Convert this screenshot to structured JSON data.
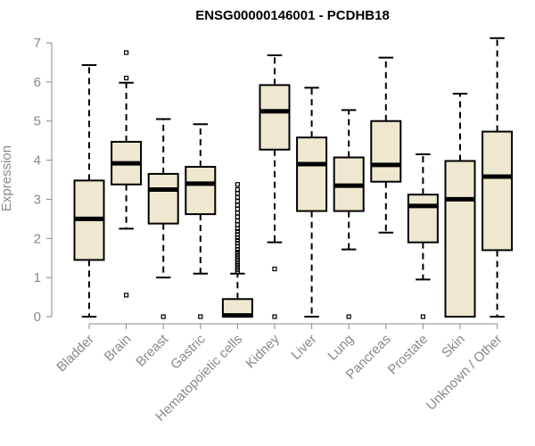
{
  "chart_data": {
    "type": "boxplot",
    "title": "ENSG00000146001 - PCDHB18",
    "ylabel": "Expression",
    "xlabel": "",
    "ylim": [
      0,
      7
    ],
    "yticks": [
      0,
      1,
      2,
      3,
      4,
      5,
      6,
      7
    ],
    "box_fill": "#efe8d0",
    "categories": [
      "Bladder",
      "Brain",
      "Breast",
      "Gastric",
      "Hematopoietic cells",
      "Kidney",
      "Liver",
      "Lung",
      "Pancreas",
      "Prostate",
      "Skin",
      "Unknown / Other"
    ],
    "series": [
      {
        "category": "Bladder",
        "whisker_low": 0.0,
        "q1": 1.45,
        "median": 2.5,
        "q3": 3.48,
        "whisker_high": 6.43,
        "outliers": []
      },
      {
        "category": "Brain",
        "whisker_low": 2.25,
        "q1": 3.38,
        "median": 3.92,
        "q3": 4.47,
        "whisker_high": 5.98,
        "outliers": [
          0.55,
          6.1,
          6.75
        ]
      },
      {
        "category": "Breast",
        "whisker_low": 1.0,
        "q1": 2.38,
        "median": 3.25,
        "q3": 3.65,
        "whisker_high": 5.05,
        "outliers": [
          0.0
        ]
      },
      {
        "category": "Gastric",
        "whisker_low": 1.1,
        "q1": 2.62,
        "median": 3.4,
        "q3": 3.83,
        "whisker_high": 4.92,
        "outliers": [
          0.0
        ]
      },
      {
        "category": "Hematopoietic cells",
        "whisker_low": 0.0,
        "q1": 0.0,
        "median": 0.03,
        "q3": 0.45,
        "whisker_high": 1.1,
        "outliers": [
          1.15,
          1.2,
          1.25,
          1.3,
          1.35,
          1.4,
          1.45,
          1.5,
          1.55,
          1.6,
          1.65,
          1.72,
          1.8,
          1.88,
          1.95,
          2.02,
          2.1,
          2.18,
          2.25,
          2.35,
          2.45,
          2.55,
          2.65,
          2.75,
          2.85,
          2.95,
          3.05,
          3.15,
          3.25,
          3.38
        ]
      },
      {
        "category": "Kidney",
        "whisker_low": 1.9,
        "q1": 4.27,
        "median": 5.25,
        "q3": 5.92,
        "whisker_high": 6.68,
        "outliers": [
          0.0,
          1.22
        ]
      },
      {
        "category": "Liver",
        "whisker_low": 0.0,
        "q1": 2.7,
        "median": 3.9,
        "q3": 4.58,
        "whisker_high": 5.85,
        "outliers": []
      },
      {
        "category": "Lung",
        "whisker_low": 1.72,
        "q1": 2.7,
        "median": 3.35,
        "q3": 4.07,
        "whisker_high": 5.28,
        "outliers": [
          0.0
        ]
      },
      {
        "category": "Pancreas",
        "whisker_low": 2.15,
        "q1": 3.45,
        "median": 3.88,
        "q3": 5.0,
        "whisker_high": 6.62,
        "outliers": []
      },
      {
        "category": "Prostate",
        "whisker_low": 0.95,
        "q1": 1.9,
        "median": 2.83,
        "q3": 3.12,
        "whisker_high": 4.15,
        "outliers": [
          0.0
        ]
      },
      {
        "category": "Skin",
        "whisker_low": 0.0,
        "q1": 0.0,
        "median": 3.0,
        "q3": 3.98,
        "whisker_high": 5.7,
        "outliers": []
      },
      {
        "category": "Unknown / Other",
        "whisker_low": 0.0,
        "q1": 1.7,
        "median": 3.58,
        "q3": 4.73,
        "whisker_high": 7.12,
        "outliers": []
      }
    ]
  }
}
